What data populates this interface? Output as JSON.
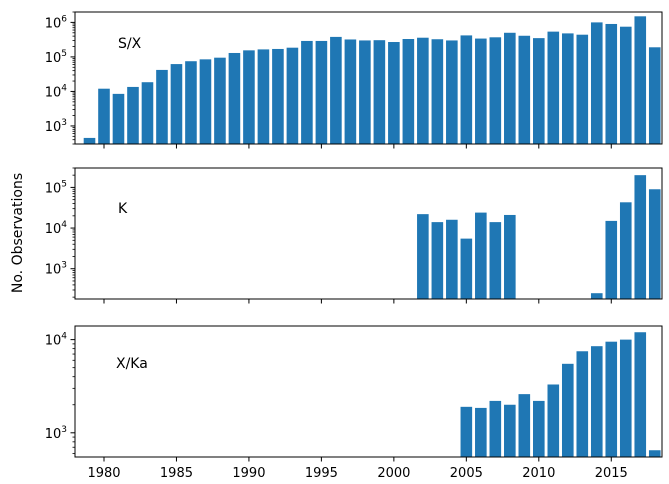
{
  "chart_data": {
    "type": "bar",
    "ylabel": "No. Observations",
    "xlim": [
      1978,
      2018.5
    ],
    "x_ticks": [
      1980,
      1985,
      1990,
      1995,
      2000,
      2005,
      2010,
      2015
    ],
    "bar_color": "#1f77b4",
    "panels": [
      {
        "label": "S/X",
        "yscale": "log",
        "ylim": [
          300,
          2000000
        ],
        "y_ticks": [
          1000,
          10000,
          100000,
          1000000
        ],
        "y_tick_labels": [
          {
            "base": "10",
            "exp": "3"
          },
          {
            "base": "10",
            "exp": "4"
          },
          {
            "base": "10",
            "exp": "5"
          },
          {
            "base": "10",
            "exp": "6"
          }
        ],
        "x": [
          1979,
          1980,
          1981,
          1982,
          1983,
          1984,
          1985,
          1986,
          1987,
          1988,
          1989,
          1990,
          1991,
          1992,
          1993,
          1994,
          1995,
          1996,
          1997,
          1998,
          1999,
          2000,
          2001,
          2002,
          2003,
          2004,
          2005,
          2006,
          2007,
          2008,
          2009,
          2010,
          2011,
          2012,
          2013,
          2014,
          2015,
          2016,
          2017,
          2018
        ],
        "values": [
          450,
          12000,
          8500,
          13500,
          18500,
          42000,
          62000,
          75000,
          85000,
          95000,
          130000,
          155000,
          165000,
          170000,
          185000,
          290000,
          290000,
          380000,
          320000,
          300000,
          305000,
          270000,
          330000,
          360000,
          325000,
          300000,
          420000,
          340000,
          370000,
          500000,
          410000,
          350000,
          540000,
          480000,
          440000,
          1000000,
          900000,
          750000,
          1500000,
          190000
        ]
      },
      {
        "label": "K",
        "yscale": "log",
        "ylim": [
          180,
          300000
        ],
        "y_ticks": [
          1000,
          10000,
          100000
        ],
        "y_tick_labels": [
          {
            "base": "10",
            "exp": "3"
          },
          {
            "base": "10",
            "exp": "4"
          },
          {
            "base": "10",
            "exp": "5"
          }
        ],
        "x": [
          2002,
          2003,
          2004,
          2005,
          2006,
          2007,
          2008,
          2014,
          2015,
          2016,
          2017,
          2018
        ],
        "values": [
          22000,
          14000,
          16000,
          5500,
          24000,
          14000,
          21000,
          250,
          15000,
          43000,
          200000,
          90000
        ]
      },
      {
        "label": "X/Ka",
        "yscale": "log",
        "ylim": [
          550,
          14000
        ],
        "y_ticks": [
          1000,
          10000
        ],
        "y_tick_labels": [
          {
            "base": "10",
            "exp": "3"
          },
          {
            "base": "10",
            "exp": "4"
          }
        ],
        "x": [
          2005,
          2006,
          2007,
          2008,
          2009,
          2010,
          2011,
          2012,
          2013,
          2014,
          2015,
          2016,
          2017,
          2018
        ],
        "values": [
          1900,
          1850,
          2200,
          2000,
          2600,
          2200,
          3300,
          5500,
          7500,
          8500,
          9500,
          10000,
          12000,
          650
        ]
      }
    ]
  }
}
